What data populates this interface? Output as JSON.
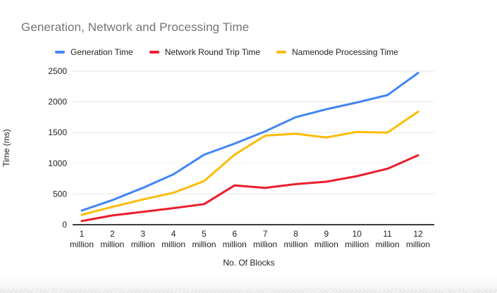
{
  "colors": {
    "title_text": "#757575",
    "axis_text": "#1f1f1f",
    "gridline": "#e6e6e6",
    "axis_line": "#212121",
    "background": "#ffffff",
    "footer_strip": "#f4f4f4"
  },
  "chart_data": {
    "type": "line",
    "title": "Generation, Network and Processing Time",
    "xlabel": "No. Of Blocks",
    "ylabel": "Time (ms)",
    "categories": [
      "1 million",
      "2 million",
      "3 million",
      "4 million",
      "5 million",
      "6 million",
      "7 million",
      "8 million",
      "9 million",
      "10 million",
      "11 million",
      "12 million"
    ],
    "series": [
      {
        "name": "Generation Time",
        "color": "#4285f4",
        "values": [
          230,
          400,
          600,
          820,
          1140,
          1320,
          1520,
          1750,
          1880,
          1990,
          2110,
          2470
        ]
      },
      {
        "name": "Network Round Trip Time",
        "color": "#ea1d2c",
        "values": [
          60,
          150,
          210,
          270,
          335,
          640,
          600,
          660,
          700,
          790,
          910,
          1130
        ]
      },
      {
        "name": "Namenode Processing Time",
        "color": "#fbbc04",
        "values": [
          160,
          290,
          410,
          520,
          710,
          1140,
          1450,
          1480,
          1420,
          1510,
          1500,
          1840
        ]
      }
    ],
    "ylim": [
      0,
      2500
    ],
    "yticks": [
      0,
      500,
      1000,
      1500,
      2000,
      2500
    ],
    "grid": true,
    "dotted_gridline_value": 1000,
    "legend_position": "top"
  }
}
